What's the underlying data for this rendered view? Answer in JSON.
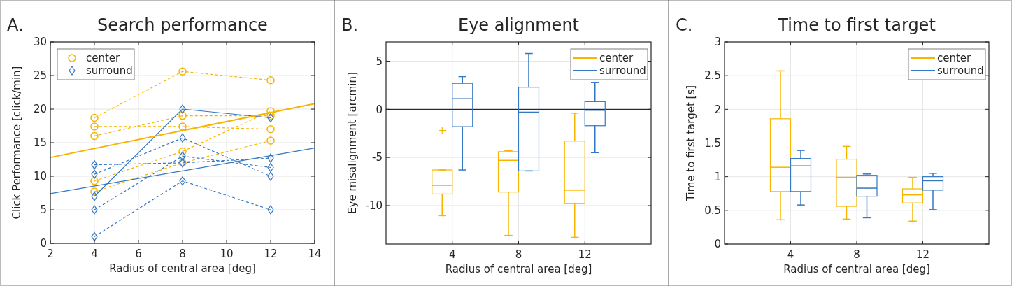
{
  "chart_data": [
    {
      "type": "line",
      "title": "Search performance",
      "xlabel": "Radius of central area [deg]",
      "ylabel": "Click Performance [click/min]",
      "annotations": [
        "A."
      ],
      "xlim": [
        2,
        14
      ],
      "xticks": [
        2,
        4,
        6,
        8,
        10,
        12,
        14
      ],
      "ylim": [
        0,
        30
      ],
      "yticks": [
        0,
        5,
        10,
        15,
        20,
        25,
        30
      ],
      "grid": true,
      "legend": "top left",
      "series": [
        {
          "name": "center",
          "color": "#f7b500",
          "x": [
            4,
            8,
            12
          ],
          "values": [
            18.7,
            25.6,
            24.3
          ],
          "marker": "circle",
          "line_style": "dashed"
        },
        {
          "color": "#f7b500",
          "x": [
            4,
            8,
            12
          ],
          "values": [
            17.4,
            17.4,
            17.0
          ],
          "marker": "circle",
          "line_style": "dashed"
        },
        {
          "color": "#f7b500",
          "x": [
            4,
            8,
            12
          ],
          "values": [
            16.0,
            19.0,
            19.0
          ],
          "marker": "circle",
          "line_style": "dashed"
        },
        {
          "color": "#f7b500",
          "x": [
            4,
            8,
            12
          ],
          "values": [
            9.3,
            13.7,
            19.7
          ],
          "marker": "circle",
          "line_style": "dashed"
        },
        {
          "color": "#f7b500",
          "x": [
            4,
            8,
            12
          ],
          "values": [
            7.7,
            12.0,
            15.3
          ],
          "marker": "circle",
          "line_style": "dashed"
        },
        {
          "name": "surround",
          "color": "#3477c2",
          "x": [
            4,
            8,
            12
          ],
          "values": [
            11.7,
            12.0,
            12.7
          ],
          "marker": "diamond",
          "line_style": "dashed"
        },
        {
          "color": "#3477c2",
          "x": [
            4,
            8,
            12
          ],
          "values": [
            10.3,
            15.7,
            10.0
          ],
          "marker": "diamond",
          "line_style": "dashed"
        },
        {
          "color": "#3477c2",
          "x": [
            4,
            8,
            12
          ],
          "values": [
            7.0,
            20.0,
            18.7
          ],
          "marker": "diamond",
          "line_style": "solid"
        },
        {
          "color": "#3477c2",
          "x": [
            4,
            8,
            12
          ],
          "values": [
            5.0,
            13.0,
            11.3
          ],
          "marker": "diamond",
          "line_style": "dashed"
        },
        {
          "color": "#3477c2",
          "x": [
            4,
            8,
            12
          ],
          "values": [
            1.0,
            9.3,
            5.0
          ],
          "marker": "diamond",
          "line_style": "dashed"
        },
        {
          "color": "#f7b500",
          "x": [
            2,
            14
          ],
          "values": [
            12.8,
            20.8
          ],
          "marker": "none",
          "line_style": "solid"
        },
        {
          "color": "#3477c2",
          "x": [
            2,
            14
          ],
          "values": [
            7.4,
            14.2
          ],
          "marker": "none",
          "line_style": "solid"
        }
      ]
    },
    {
      "type": "box",
      "title": "Eye alignment",
      "xlabel": "Radius of central area [deg]",
      "ylabel": "Eye misalignment [arcmin]",
      "annotations": [
        "B."
      ],
      "categories": [
        "4",
        "8",
        "12"
      ],
      "ylim": [
        -14,
        7
      ],
      "yticks": [
        -10,
        -5,
        0,
        5
      ],
      "grid": true,
      "legend": "top right",
      "ref_lines": [
        {
          "axis": "y",
          "value": 0,
          "color": "#000000"
        }
      ],
      "series": [
        {
          "name": "center",
          "color": "#f7b500",
          "boxes": [
            {
              "low": -11.05,
              "q1": -8.8,
              "median": -7.9,
              "q3": -6.3,
              "high": -6.3,
              "outliers": [
                -2.2
              ]
            },
            {
              "low": -13.1,
              "q1": -8.6,
              "median": -5.3,
              "q3": -4.4,
              "high": -4.3
            },
            {
              "low": -13.3,
              "q1": -9.8,
              "median": -8.4,
              "q3": -3.3,
              "high": -0.4
            }
          ]
        },
        {
          "name": "surround",
          "color": "#3477c2",
          "boxes": [
            {
              "low": -6.3,
              "q1": -1.8,
              "median": 1.1,
              "q3": 2.7,
              "high": 3.4
            },
            {
              "low": -6.4,
              "q1": -6.4,
              "median": -0.3,
              "q3": 2.3,
              "high": 5.8
            },
            {
              "low": -4.5,
              "q1": -1.7,
              "median": -0.1,
              "q3": 0.8,
              "high": 2.8
            }
          ]
        }
      ]
    },
    {
      "type": "box",
      "title": "Time to first target",
      "xlabel": "Radius of central area [deg]",
      "ylabel": "Time to first target [s]",
      "annotations": [
        "C."
      ],
      "categories": [
        "4",
        "8",
        "12"
      ],
      "ylim": [
        0,
        3
      ],
      "yticks": [
        0,
        0.5,
        1,
        1.5,
        2,
        2.5,
        3
      ],
      "grid": true,
      "legend": "top right",
      "series": [
        {
          "name": "center",
          "color": "#f7b500",
          "boxes": [
            {
              "low": 0.36,
              "q1": 0.78,
              "median": 1.14,
              "q3": 1.86,
              "high": 2.57
            },
            {
              "low": 0.37,
              "q1": 0.56,
              "median": 0.99,
              "q3": 1.26,
              "high": 1.45
            },
            {
              "low": 0.34,
              "q1": 0.61,
              "median": 0.73,
              "q3": 0.82,
              "high": 0.99
            }
          ]
        },
        {
          "name": "surround",
          "color": "#3477c2",
          "boxes": [
            {
              "low": 0.58,
              "q1": 0.78,
              "median": 1.16,
              "q3": 1.27,
              "high": 1.39
            },
            {
              "low": 0.39,
              "q1": 0.71,
              "median": 0.83,
              "q3": 1.02,
              "high": 1.04
            },
            {
              "low": 0.51,
              "q1": 0.8,
              "median": 0.94,
              "q3": 1.0,
              "high": 1.05
            }
          ]
        }
      ]
    }
  ]
}
